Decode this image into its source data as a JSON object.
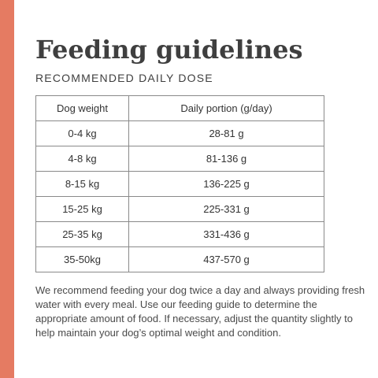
{
  "colors": {
    "accent": "#E57B62",
    "text": "#3F3F3F",
    "border": "#8A8A8A"
  },
  "header": {
    "title": "Feeding guidelines",
    "subtitle": "RECOMMENDED DAILY DOSE"
  },
  "table": {
    "headers": [
      "Dog weight",
      "Daily portion (g/day)"
    ],
    "rows": [
      [
        "0-4 kg",
        "28-81 g"
      ],
      [
        "4-8 kg",
        "81-136 g"
      ],
      [
        "8-15 kg",
        "136-225 g"
      ],
      [
        "15-25 kg",
        "225-331 g"
      ],
      [
        "25-35 kg",
        "331-436 g"
      ],
      [
        "35-50kg",
        "437-570 g"
      ]
    ]
  },
  "note": "We recommend feeding your dog twice a day and always providing fresh water with every meal. Use our feeding guide to determine the appropriate amount of food. If necessary, adjust the quantity slightly to help maintain your dog’s optimal weight and condition."
}
